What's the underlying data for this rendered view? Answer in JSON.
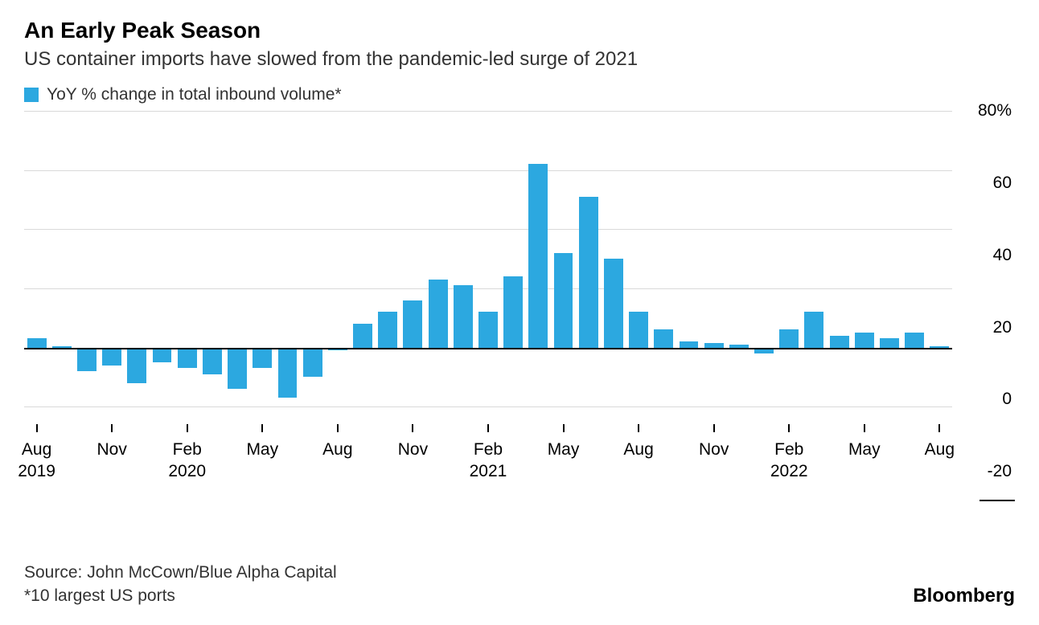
{
  "title": "An Early Peak Season",
  "subtitle": "US container imports have slowed from the pandemic-led surge of 2021",
  "legend": {
    "label": "YoY % change in total inbound volume*",
    "swatch_color": "#2ca8e0"
  },
  "chart": {
    "type": "bar",
    "bar_color": "#2ca8e0",
    "background_color": "#ffffff",
    "grid_color": "#d9d9d9",
    "zero_line_color": "#000000",
    "y": {
      "min": -26,
      "max": 80,
      "ticks": [
        {
          "v": 80,
          "label": "80%"
        },
        {
          "v": 60,
          "label": "60"
        },
        {
          "v": 40,
          "label": "40"
        },
        {
          "v": 20,
          "label": "20"
        },
        {
          "v": 0,
          "label": "0"
        },
        {
          "v": -20,
          "label": "-20"
        }
      ],
      "label_fontsize": 21
    },
    "x_labels": [
      {
        "i": 0,
        "month": "Aug",
        "year": "2019"
      },
      {
        "i": 3,
        "month": "Nov"
      },
      {
        "i": 6,
        "month": "Feb",
        "year": "2020"
      },
      {
        "i": 9,
        "month": "May"
      },
      {
        "i": 12,
        "month": "Aug"
      },
      {
        "i": 15,
        "month": "Nov"
      },
      {
        "i": 18,
        "month": "Feb",
        "year": "2021"
      },
      {
        "i": 21,
        "month": "May"
      },
      {
        "i": 24,
        "month": "Aug"
      },
      {
        "i": 27,
        "month": "Nov"
      },
      {
        "i": 30,
        "month": "Feb",
        "year": "2022"
      },
      {
        "i": 33,
        "month": "May"
      },
      {
        "i": 36,
        "month": "Aug"
      }
    ],
    "values": [
      3,
      0.5,
      -8,
      -6,
      -12,
      -5,
      -7,
      -9,
      -14,
      -7,
      -17,
      -10,
      -1,
      8,
      12,
      16,
      23,
      21,
      12,
      24,
      62,
      32,
      51,
      30,
      12,
      6,
      2,
      1.5,
      1,
      -2,
      6,
      12,
      4,
      5,
      3,
      5,
      0.5
    ]
  },
  "footer": {
    "source": "Source: John McCown/Blue Alpha Capital",
    "note": "*10 largest US ports",
    "brand": "Bloomberg"
  }
}
